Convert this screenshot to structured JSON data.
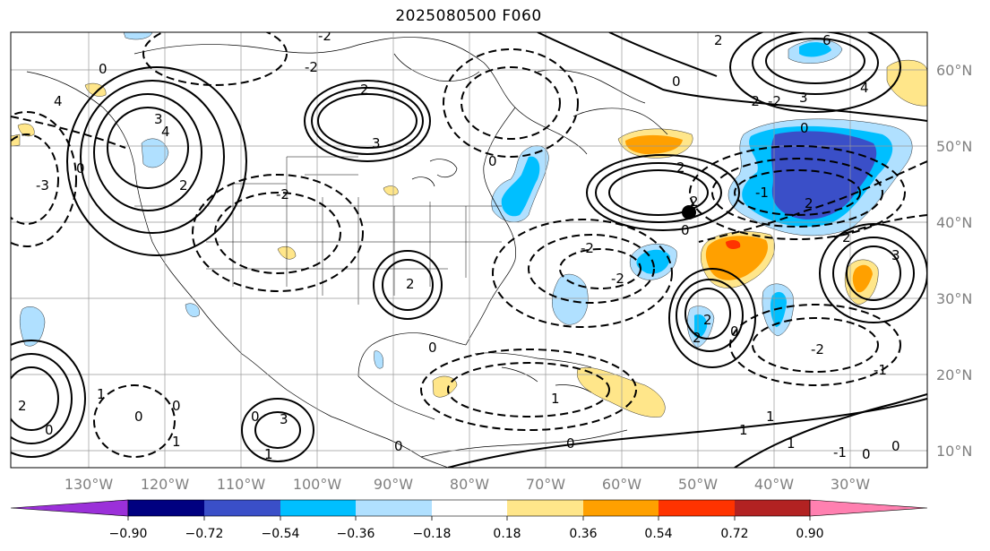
{
  "title": "2025080500 F060",
  "map": {
    "lon_labels": [
      "130°W",
      "120°W",
      "110°W",
      "100°W",
      "90°W",
      "80°W",
      "70°W",
      "60°W",
      "50°W",
      "40°W",
      "30°W"
    ],
    "lat_labels": [
      "60°N",
      "50°N",
      "40°N",
      "30°N",
      "20°N",
      "10°N"
    ],
    "grid_color": "#999999",
    "coast_color": "#000000",
    "point_marker": "black dot"
  },
  "contours": {
    "positive_style": "solid",
    "negative_style": "dashed",
    "labels": [
      "2",
      "3",
      "4",
      "-2",
      "-3",
      "0",
      "1",
      "-1",
      "6",
      "2",
      "-2",
      "3",
      "-2",
      "0",
      "0",
      "4",
      "2",
      "-3",
      "-3",
      "-2",
      "2",
      "-2",
      "2",
      "-3",
      "0",
      "3",
      "2",
      "-1",
      "1",
      "-1",
      "0",
      "1",
      "0",
      "-1",
      "0",
      "-1",
      "1",
      "0"
    ]
  },
  "colorbar": {
    "ticks": [
      "−0.90",
      "−0.72",
      "−0.54",
      "−0.36",
      "−0.18",
      "0.18",
      "0.36",
      "0.54",
      "0.72",
      "0.90"
    ],
    "colors": [
      "#9b30d9",
      "#000080",
      "#3a4fc8",
      "#00bfff",
      "#b0e0ff",
      "#ffffff",
      "#ffe68a",
      "#ffa000",
      "#ff3300",
      "#b22222",
      "#ff80b0"
    ]
  }
}
